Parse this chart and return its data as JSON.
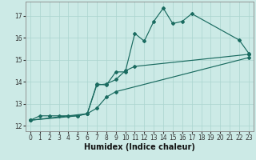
{
  "xlabel": "Humidex (Indice chaleur)",
  "bg_color": "#cceae6",
  "line_color": "#1a6b60",
  "grid_color": "#aad4ce",
  "xlim": [
    -0.5,
    23.5
  ],
  "ylim": [
    11.75,
    17.65
  ],
  "yticks": [
    12,
    13,
    14,
    15,
    16,
    17
  ],
  "xticks": [
    0,
    1,
    2,
    3,
    4,
    5,
    6,
    7,
    8,
    9,
    10,
    11,
    12,
    13,
    14,
    15,
    16,
    17,
    18,
    19,
    20,
    21,
    22,
    23
  ],
  "jagged_x": [
    0,
    1,
    2,
    3,
    4,
    5,
    6,
    7,
    8,
    9,
    10,
    11,
    12,
    13,
    14,
    15,
    16,
    17,
    22,
    23
  ],
  "jagged_y": [
    12.25,
    12.45,
    12.45,
    12.45,
    12.45,
    12.45,
    12.55,
    13.9,
    13.85,
    14.45,
    14.45,
    16.2,
    15.85,
    16.75,
    17.35,
    16.65,
    16.75,
    17.1,
    15.9,
    15.3
  ],
  "upper_line_x": [
    0,
    6,
    7,
    8,
    9,
    10,
    11,
    23
  ],
  "upper_line_y": [
    12.25,
    12.55,
    13.85,
    13.9,
    14.1,
    14.5,
    14.7,
    15.25
  ],
  "lower_line_x": [
    0,
    5,
    6,
    7,
    8,
    9,
    23
  ],
  "lower_line_y": [
    12.25,
    12.45,
    12.55,
    12.8,
    13.3,
    13.55,
    15.1
  ],
  "tick_fontsize": 5.5,
  "label_fontsize": 7.0
}
